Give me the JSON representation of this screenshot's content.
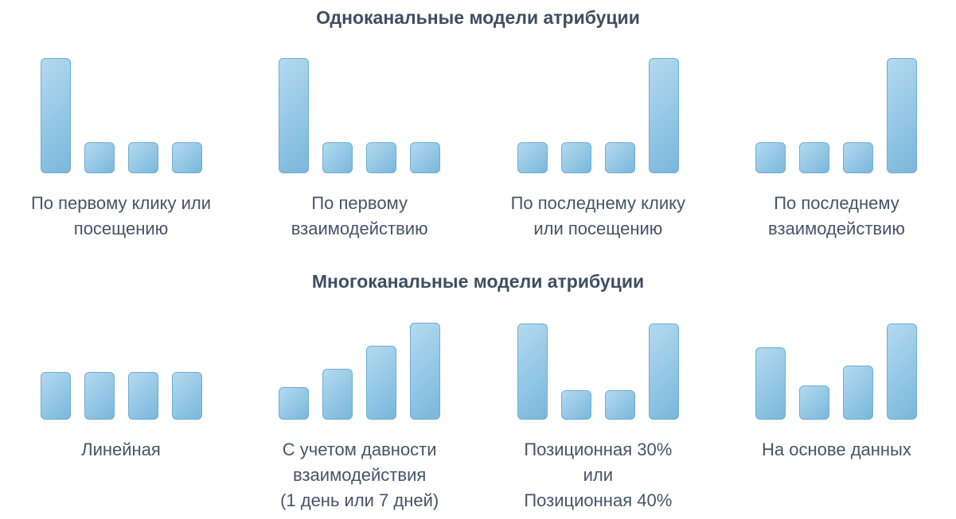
{
  "page": {
    "background": "#ffffff"
  },
  "colors": {
    "bar_gradient_start": "#b3daf0",
    "bar_gradient_end": "#79b7db",
    "bar_border": "#6fadd3",
    "label_text": "#44546a",
    "title_text": "#3d4e63"
  },
  "sections": [
    {
      "title": "Одноканальные модели атрибуции"
    },
    {
      "title": "Многоканальные модели атрибуции"
    }
  ],
  "chart_data": [
    {
      "type": "bar",
      "section": "Одноканальные модели атрибуции",
      "title": "По первому клику или посещению",
      "display_label": "По первому клику или\nпосещению",
      "values": [
        100,
        27,
        27,
        27
      ],
      "ylim": [
        0,
        100
      ],
      "axes": false,
      "grid": false,
      "legend": false
    },
    {
      "type": "bar",
      "section": "Одноканальные модели атрибуции",
      "title": "По первому взаимодействию",
      "display_label": "По первому\nвзаимодействию",
      "values": [
        100,
        27,
        27,
        27
      ],
      "ylim": [
        0,
        100
      ],
      "axes": false,
      "grid": false,
      "legend": false
    },
    {
      "type": "bar",
      "section": "Одноканальные модели атрибуции",
      "title": "По последнему клику или посещению",
      "display_label": "По последнему клику\nили посещению",
      "values": [
        27,
        27,
        27,
        100
      ],
      "ylim": [
        0,
        100
      ],
      "axes": false,
      "grid": false,
      "legend": false
    },
    {
      "type": "bar",
      "section": "Одноканальные модели атрибуции",
      "title": "По последнему взаимодействию",
      "display_label": "По последнему\nвзаимодействию",
      "values": [
        27,
        27,
        27,
        100
      ],
      "ylim": [
        0,
        100
      ],
      "axes": false,
      "grid": false,
      "legend": false
    },
    {
      "type": "bar",
      "section": "Многоканальные модели атрибуции",
      "title": "Линейная",
      "display_label": "Линейная",
      "values": [
        49,
        49,
        49,
        49
      ],
      "ylim": [
        0,
        100
      ],
      "axes": false,
      "grid": false,
      "legend": false
    },
    {
      "type": "bar",
      "section": "Многоканальные модели атрибуции",
      "title": "С учетом давности взаимодействия (1 день или 7 дней)",
      "display_label": "С учетом давности\nвзаимодействия\n(1 день или 7 дней)",
      "values": [
        33,
        52,
        76,
        99
      ],
      "ylim": [
        0,
        100
      ],
      "axes": false,
      "grid": false,
      "legend": false
    },
    {
      "type": "bar",
      "section": "Многоканальные модели атрибуции",
      "title": "Позиционная 30% или Позиционная 40%",
      "display_label": "Позиционная 30%\nили\nПозиционная 40%",
      "values": [
        98,
        30,
        30,
        98
      ],
      "ylim": [
        0,
        100
      ],
      "axes": false,
      "grid": false,
      "legend": false
    },
    {
      "type": "bar",
      "section": "Многоканальные модели атрибуции",
      "title": "На основе данных",
      "display_label": "На основе данных",
      "values": [
        74,
        35,
        55,
        98
      ],
      "ylim": [
        0,
        100
      ],
      "axes": false,
      "grid": false,
      "legend": false
    }
  ]
}
